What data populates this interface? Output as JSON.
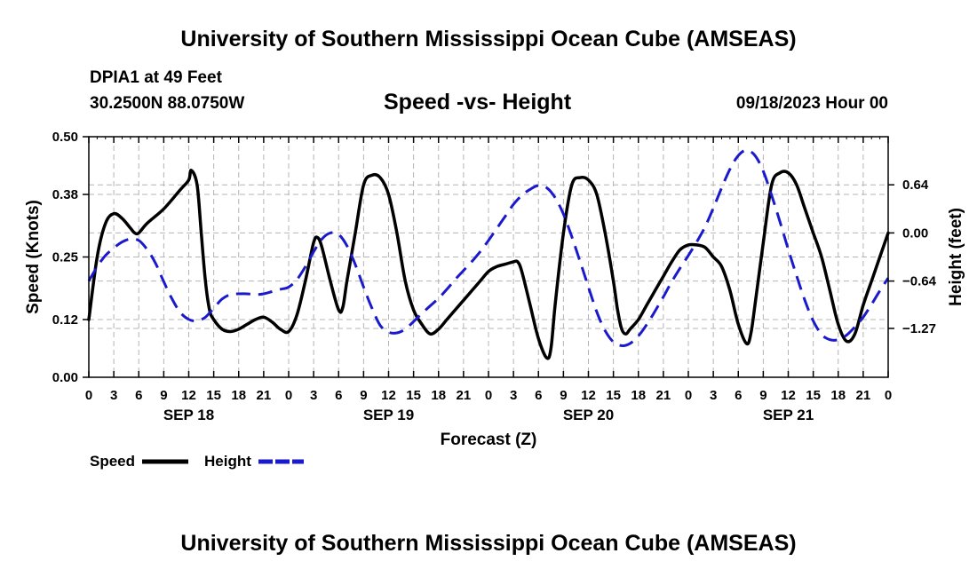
{
  "header": {
    "title": "University of Southern Mississippi Ocean Cube (AMSEAS)",
    "station": "DPIA1 at 49 Feet",
    "coords": "30.2500N  88.0750W",
    "subtitle": "Speed -vs- Height",
    "datetime": "09/18/2023 Hour 00"
  },
  "footer": {
    "title": "University of Southern Mississippi Ocean Cube (AMSEAS)"
  },
  "chart_data": {
    "type": "line",
    "title": "Speed -vs- Height",
    "xlabel": "Forecast (Z)",
    "ylabel": "Speed (Knots)",
    "y2label": "Height (feet)",
    "xlim": [
      0,
      96
    ],
    "ylim": [
      0,
      0.5
    ],
    "y2lim": [
      -1.92,
      1.28
    ],
    "xticks": [
      0,
      3,
      6,
      9,
      12,
      15,
      18,
      21,
      24,
      27,
      30,
      33,
      36,
      39,
      42,
      45,
      48,
      51,
      54,
      57,
      60,
      63,
      66,
      69,
      72,
      75,
      78,
      81,
      84,
      87,
      90,
      93,
      96
    ],
    "xtick_labels": [
      "0",
      "3",
      "6",
      "9",
      "12",
      "15",
      "18",
      "21",
      "0",
      "3",
      "6",
      "9",
      "12",
      "15",
      "18",
      "21",
      "0",
      "3",
      "6",
      "9",
      "12",
      "15",
      "18",
      "21",
      "0",
      "3",
      "6",
      "9",
      "12",
      "15",
      "18",
      "21",
      "0"
    ],
    "day_labels": [
      {
        "label": "SEP 18",
        "hour": 12
      },
      {
        "label": "SEP 19",
        "hour": 36
      },
      {
        "label": "SEP 20",
        "hour": 60
      },
      {
        "label": "SEP 21",
        "hour": 84
      }
    ],
    "yticks": [
      0,
      0.12,
      0.25,
      0.38,
      0.5
    ],
    "ytick_labels": [
      "0.00",
      "0.12",
      "0.25",
      "0.38",
      "0.50"
    ],
    "y2ticks": [
      -1.27,
      -0.64,
      0,
      0.64
    ],
    "y2tick_labels": [
      "-1.27",
      "-0.64",
      "0.00",
      "0.64"
    ],
    "grid": true,
    "legend": {
      "position": "bottom-left",
      "entries": [
        {
          "label": "Speed",
          "color": "#000000",
          "style": "solid"
        },
        {
          "label": "Height",
          "color": "#1a1acc",
          "style": "dashed"
        }
      ]
    },
    "series": [
      {
        "name": "Speed",
        "axis": "left",
        "color": "#000000",
        "points": [
          [
            0,
            0.12
          ],
          [
            1,
            0.25
          ],
          [
            2,
            0.32
          ],
          [
            3,
            0.34
          ],
          [
            4,
            0.33
          ],
          [
            5,
            0.31
          ],
          [
            5.5,
            0.3
          ],
          [
            6,
            0.3
          ],
          [
            7,
            0.32
          ],
          [
            9,
            0.35
          ],
          [
            11,
            0.39
          ],
          [
            12,
            0.41
          ],
          [
            12.3,
            0.43
          ],
          [
            13,
            0.4
          ],
          [
            13.5,
            0.3
          ],
          [
            14,
            0.2
          ],
          [
            14.5,
            0.14
          ],
          [
            15,
            0.12
          ],
          [
            16,
            0.1
          ],
          [
            17,
            0.095
          ],
          [
            18,
            0.1
          ],
          [
            19,
            0.11
          ],
          [
            20,
            0.12
          ],
          [
            21,
            0.125
          ],
          [
            22,
            0.115
          ],
          [
            23,
            0.1
          ],
          [
            24,
            0.095
          ],
          [
            25,
            0.13
          ],
          [
            26,
            0.2
          ],
          [
            27,
            0.28
          ],
          [
            27.5,
            0.29
          ],
          [
            28,
            0.27
          ],
          [
            29,
            0.2
          ],
          [
            30,
            0.14
          ],
          [
            30.5,
            0.145
          ],
          [
            31,
            0.2
          ],
          [
            32,
            0.3
          ],
          [
            33,
            0.4
          ],
          [
            34,
            0.42
          ],
          [
            35,
            0.415
          ],
          [
            36,
            0.38
          ],
          [
            37,
            0.3
          ],
          [
            38,
            0.2
          ],
          [
            39,
            0.14
          ],
          [
            40,
            0.11
          ],
          [
            41,
            0.09
          ],
          [
            42,
            0.1
          ],
          [
            43,
            0.12
          ],
          [
            44,
            0.14
          ],
          [
            45,
            0.16
          ],
          [
            46,
            0.18
          ],
          [
            47,
            0.2
          ],
          [
            48,
            0.22
          ],
          [
            49,
            0.23
          ],
          [
            50,
            0.235
          ],
          [
            51,
            0.24
          ],
          [
            51.5,
            0.24
          ],
          [
            52,
            0.22
          ],
          [
            53,
            0.15
          ],
          [
            54,
            0.08
          ],
          [
            55,
            0.04
          ],
          [
            55.5,
            0.06
          ],
          [
            56,
            0.15
          ],
          [
            57,
            0.3
          ],
          [
            58,
            0.4
          ],
          [
            59,
            0.415
          ],
          [
            60,
            0.41
          ],
          [
            61,
            0.38
          ],
          [
            62,
            0.3
          ],
          [
            63,
            0.2
          ],
          [
            63.5,
            0.14
          ],
          [
            64,
            0.1
          ],
          [
            64.5,
            0.09
          ],
          [
            65,
            0.1
          ],
          [
            66,
            0.12
          ],
          [
            67,
            0.15
          ],
          [
            68,
            0.18
          ],
          [
            69,
            0.21
          ],
          [
            70,
            0.24
          ],
          [
            71,
            0.265
          ],
          [
            72,
            0.275
          ],
          [
            73,
            0.275
          ],
          [
            74,
            0.27
          ],
          [
            75,
            0.25
          ],
          [
            76,
            0.23
          ],
          [
            77,
            0.18
          ],
          [
            78,
            0.11
          ],
          [
            79,
            0.07
          ],
          [
            79.5,
            0.09
          ],
          [
            80,
            0.15
          ],
          [
            81,
            0.28
          ],
          [
            82,
            0.4
          ],
          [
            83,
            0.425
          ],
          [
            84,
            0.425
          ],
          [
            85,
            0.4
          ],
          [
            86,
            0.35
          ],
          [
            87,
            0.3
          ],
          [
            88,
            0.25
          ],
          [
            89,
            0.18
          ],
          [
            90,
            0.11
          ],
          [
            91,
            0.075
          ],
          [
            92,
            0.09
          ],
          [
            93,
            0.15
          ],
          [
            94,
            0.2
          ],
          [
            95,
            0.25
          ],
          [
            96,
            0.3
          ]
        ]
      },
      {
        "name": "Height",
        "axis": "right",
        "color": "#1a1acc",
        "points": [
          [
            0,
            -0.64
          ],
          [
            1,
            -0.45
          ],
          [
            2,
            -0.3
          ],
          [
            3,
            -0.2
          ],
          [
            4,
            -0.12
          ],
          [
            5,
            -0.08
          ],
          [
            6,
            -0.1
          ],
          [
            7,
            -0.22
          ],
          [
            8,
            -0.4
          ],
          [
            9,
            -0.65
          ],
          [
            10,
            -0.88
          ],
          [
            11,
            -1.06
          ],
          [
            12,
            -1.15
          ],
          [
            13,
            -1.17
          ],
          [
            14,
            -1.12
          ],
          [
            15,
            -1.0
          ],
          [
            16,
            -0.88
          ],
          [
            17,
            -0.82
          ],
          [
            18,
            -0.81
          ],
          [
            19,
            -0.81
          ],
          [
            20,
            -0.82
          ],
          [
            21,
            -0.81
          ],
          [
            22,
            -0.78
          ],
          [
            23,
            -0.75
          ],
          [
            24,
            -0.72
          ],
          [
            25,
            -0.62
          ],
          [
            26,
            -0.45
          ],
          [
            27,
            -0.25
          ],
          [
            28,
            -0.08
          ],
          [
            29,
            0.0
          ],
          [
            30,
            -0.02
          ],
          [
            31,
            -0.17
          ],
          [
            32,
            -0.42
          ],
          [
            33,
            -0.72
          ],
          [
            34,
            -1.0
          ],
          [
            35,
            -1.23
          ],
          [
            36,
            -1.32
          ],
          [
            37,
            -1.33
          ],
          [
            38,
            -1.28
          ],
          [
            39,
            -1.18
          ],
          [
            40,
            -1.07
          ],
          [
            41,
            -0.97
          ],
          [
            42,
            -0.87
          ],
          [
            43,
            -0.75
          ],
          [
            44,
            -0.62
          ],
          [
            45,
            -0.5
          ],
          [
            46,
            -0.38
          ],
          [
            47,
            -0.25
          ],
          [
            48,
            -0.1
          ],
          [
            49,
            0.06
          ],
          [
            50,
            0.22
          ],
          [
            51,
            0.38
          ],
          [
            52,
            0.5
          ],
          [
            53,
            0.58
          ],
          [
            54,
            0.63
          ],
          [
            55,
            0.6
          ],
          [
            56,
            0.47
          ],
          [
            57,
            0.25
          ],
          [
            58,
            -0.05
          ],
          [
            59,
            -0.38
          ],
          [
            60,
            -0.72
          ],
          [
            61,
            -1.05
          ],
          [
            62,
            -1.3
          ],
          [
            63,
            -1.45
          ],
          [
            64,
            -1.5
          ],
          [
            65,
            -1.47
          ],
          [
            66,
            -1.37
          ],
          [
            67,
            -1.22
          ],
          [
            68,
            -1.04
          ],
          [
            69,
            -0.85
          ],
          [
            70,
            -0.65
          ],
          [
            71,
            -0.47
          ],
          [
            72,
            -0.3
          ],
          [
            73,
            -0.12
          ],
          [
            74,
            0.08
          ],
          [
            75,
            0.33
          ],
          [
            76,
            0.6
          ],
          [
            77,
            0.85
          ],
          [
            78,
            1.03
          ],
          [
            79,
            1.1
          ],
          [
            80,
            1.03
          ],
          [
            81,
            0.82
          ],
          [
            82,
            0.5
          ],
          [
            83,
            0.15
          ],
          [
            84,
            -0.22
          ],
          [
            85,
            -0.57
          ],
          [
            86,
            -0.9
          ],
          [
            87,
            -1.17
          ],
          [
            88,
            -1.35
          ],
          [
            89,
            -1.42
          ],
          [
            90,
            -1.42
          ],
          [
            91,
            -1.36
          ],
          [
            92,
            -1.25
          ],
          [
            93,
            -1.12
          ],
          [
            94,
            -0.95
          ],
          [
            95,
            -0.77
          ],
          [
            96,
            -0.6
          ]
        ]
      }
    ]
  }
}
